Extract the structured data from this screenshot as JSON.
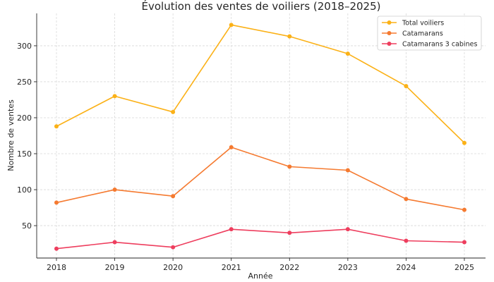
{
  "chart_data": {
    "type": "line",
    "title": "Évolution des ventes de voiliers (2018–2025)",
    "xlabel": "Année",
    "ylabel": "Nombre de ventes",
    "categories": [
      "2018",
      "2019",
      "2020",
      "2021",
      "2022",
      "2023",
      "2024",
      "2025"
    ],
    "yticks": [
      50,
      100,
      150,
      200,
      250,
      300
    ],
    "ylim": [
      5,
      345
    ],
    "grid": true,
    "legend_position": "top-right",
    "series": [
      {
        "name": "Total voiliers",
        "color": "#FBB117",
        "values": [
          188,
          230,
          208,
          329,
          313,
          289,
          244,
          165
        ]
      },
      {
        "name": "Catamarans",
        "color": "#F57A30",
        "values": [
          82,
          100,
          91,
          159,
          132,
          127,
          87,
          72
        ]
      },
      {
        "name": "Catamarans 3 cabines",
        "color": "#EE3E5E",
        "values": [
          18,
          27,
          20,
          45,
          40,
          45,
          29,
          27
        ]
      }
    ]
  }
}
